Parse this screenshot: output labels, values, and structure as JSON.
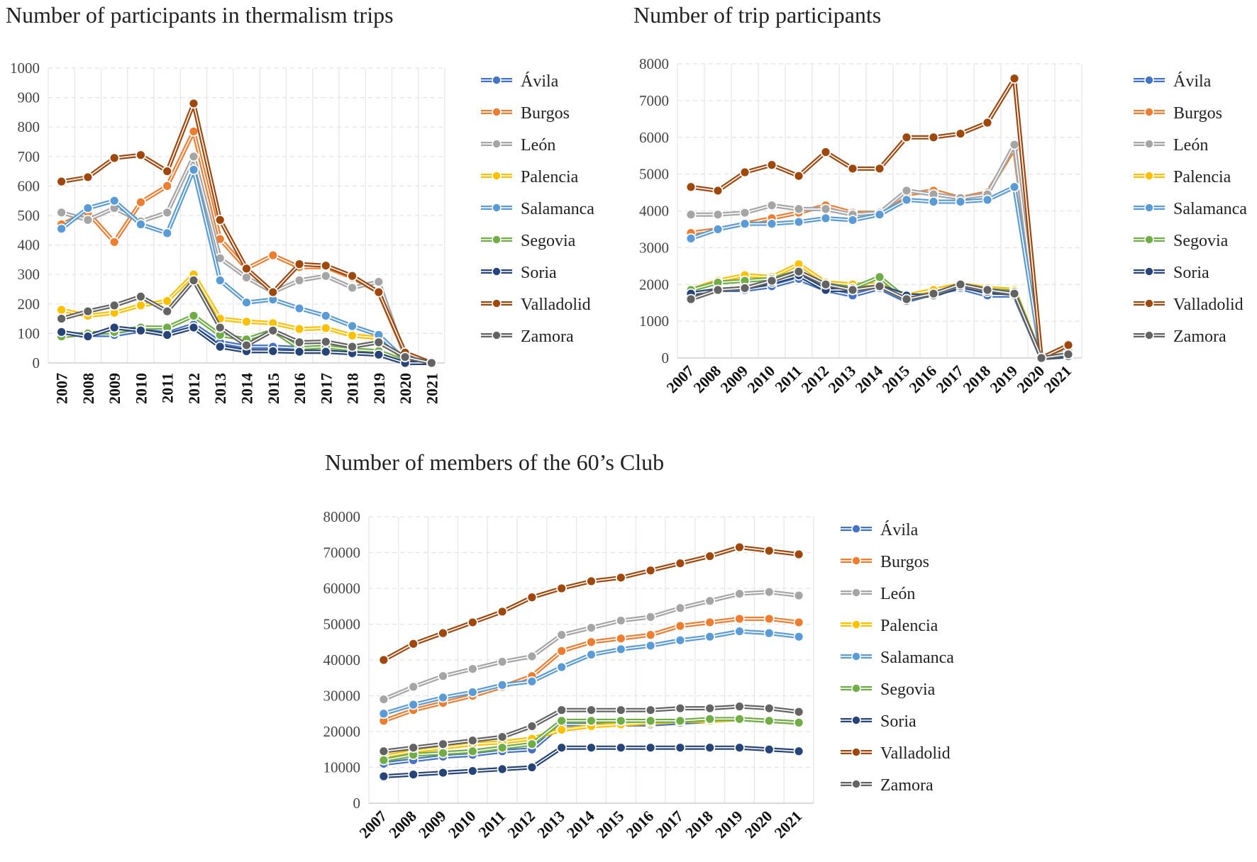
{
  "years": [
    "2007",
    "2008",
    "2009",
    "2010",
    "2011",
    "2012",
    "2013",
    "2014",
    "2015",
    "2016",
    "2017",
    "2018",
    "2019",
    "2020",
    "2021"
  ],
  "colors": {
    "Ávila": "#4472C4",
    "Burgos": "#ED7D31",
    "León": "#A5A5A5",
    "Palencia": "#FFC000",
    "Salamanca": "#5B9BD5",
    "Segovia": "#70AD47",
    "Soria": "#264478",
    "Valladolid": "#9E480E",
    "Zamora": "#636363"
  },
  "chart_data": [
    {
      "type": "line",
      "title": "Number of participants in thermalism trips",
      "xlabel": "",
      "ylabel": "",
      "ylim": [
        0,
        1000
      ],
      "yticks": [
        "0",
        "100",
        "200",
        "300",
        "400",
        "500",
        "600",
        "700",
        "800",
        "900",
        "1000"
      ],
      "grid": true,
      "legend": "right",
      "series": [
        {
          "name": "Ávila",
          "values": [
            100,
            95,
            95,
            110,
            100,
            130,
            70,
            55,
            55,
            50,
            45,
            40,
            30,
            0,
            0
          ]
        },
        {
          "name": "Burgos",
          "values": [
            470,
            510,
            410,
            545,
            600,
            785,
            420,
            320,
            365,
            325,
            325,
            290,
            240,
            30,
            0
          ]
        },
        {
          "name": "León",
          "values": [
            510,
            485,
            525,
            480,
            510,
            700,
            355,
            290,
            240,
            280,
            295,
            255,
            275,
            20,
            0
          ]
        },
        {
          "name": "Palencia",
          "values": [
            180,
            160,
            170,
            195,
            210,
            300,
            150,
            140,
            135,
            115,
            118,
            93,
            85,
            10,
            0
          ]
        },
        {
          "name": "Salamanca",
          "values": [
            455,
            525,
            550,
            470,
            440,
            655,
            280,
            205,
            215,
            185,
            160,
            125,
            95,
            10,
            0
          ]
        },
        {
          "name": "Segovia",
          "values": [
            90,
            100,
            105,
            120,
            120,
            160,
            95,
            80,
            110,
            50,
            55,
            45,
            40,
            5,
            0
          ]
        },
        {
          "name": "Soria",
          "values": [
            105,
            90,
            120,
            110,
            95,
            120,
            55,
            40,
            40,
            38,
            38,
            33,
            28,
            0,
            0
          ]
        },
        {
          "name": "Valladolid",
          "values": [
            615,
            630,
            695,
            705,
            650,
            880,
            485,
            320,
            240,
            335,
            330,
            295,
            240,
            35,
            0
          ]
        },
        {
          "name": "Zamora",
          "values": [
            150,
            175,
            195,
            225,
            175,
            280,
            120,
            60,
            110,
            70,
            72,
            55,
            70,
            20,
            0
          ]
        }
      ]
    },
    {
      "type": "line",
      "title": "Number of trip participants",
      "xlabel": "",
      "ylabel": "",
      "ylim": [
        0,
        8000
      ],
      "yticks": [
        "0",
        "1000",
        "2000",
        "3000",
        "4000",
        "5000",
        "6000",
        "7000",
        "8000"
      ],
      "grid": true,
      "legend": "right",
      "series": [
        {
          "name": "Ávila",
          "values": [
            1700,
            1850,
            1850,
            1950,
            2150,
            1850,
            1700,
            1900,
            1550,
            1750,
            1900,
            1700,
            1700,
            0,
            50
          ]
        },
        {
          "name": "Burgos",
          "values": [
            3400,
            3500,
            3650,
            3800,
            3950,
            4150,
            3950,
            3950,
            4450,
            4550,
            4350,
            4500,
            5700,
            0,
            300
          ]
        },
        {
          "name": "León",
          "values": [
            3900,
            3900,
            3950,
            4150,
            4050,
            4050,
            3900,
            3950,
            4550,
            4450,
            4350,
            4450,
            5800,
            0,
            200
          ]
        },
        {
          "name": "Palencia",
          "values": [
            1850,
            2100,
            2250,
            2200,
            2550,
            2050,
            2000,
            2000,
            1700,
            1850,
            2000,
            1900,
            1850,
            0,
            100
          ]
        },
        {
          "name": "Salamanca",
          "values": [
            3250,
            3500,
            3650,
            3650,
            3700,
            3800,
            3750,
            3900,
            4300,
            4250,
            4250,
            4300,
            4650,
            0,
            100
          ]
        },
        {
          "name": "Segovia",
          "values": [
            1850,
            2050,
            2100,
            2150,
            2350,
            2000,
            1900,
            2200,
            1600,
            1750,
            2000,
            1850,
            1800,
            0,
            50
          ]
        },
        {
          "name": "Soria",
          "values": [
            1750,
            1850,
            1900,
            2050,
            2250,
            1850,
            1850,
            1950,
            1700,
            1700,
            1950,
            1800,
            1750,
            0,
            50
          ]
        },
        {
          "name": "Valladolid",
          "values": [
            4650,
            4550,
            5050,
            5250,
            4950,
            5600,
            5150,
            5150,
            6000,
            6000,
            6100,
            6400,
            7600,
            0,
            350
          ]
        },
        {
          "name": "Zamora",
          "values": [
            1600,
            1850,
            1900,
            2100,
            2350,
            2000,
            1850,
            1950,
            1600,
            1750,
            2000,
            1850,
            1750,
            0,
            100
          ]
        }
      ]
    },
    {
      "type": "line",
      "title": "Number of members of the 60’s Club",
      "xlabel": "",
      "ylabel": "",
      "ylim": [
        0,
        80000
      ],
      "yticks": [
        "0",
        "10000",
        "20000",
        "30000",
        "40000",
        "50000",
        "60000",
        "70000",
        "80000"
      ],
      "grid": true,
      "legend": "right",
      "series": [
        {
          "name": "Ávila",
          "values": [
            11000,
            12000,
            13000,
            13500,
            14500,
            15000,
            22000,
            22000,
            22000,
            22000,
            22500,
            23000,
            23500,
            23000,
            22500
          ]
        },
        {
          "name": "Burgos",
          "values": [
            23000,
            26000,
            28000,
            30000,
            32500,
            35500,
            42500,
            45000,
            46000,
            47000,
            49500,
            50500,
            51500,
            51500,
            50500
          ]
        },
        {
          "name": "León",
          "values": [
            29000,
            32500,
            35500,
            37500,
            39500,
            41000,
            47000,
            49000,
            51000,
            52000,
            54500,
            56500,
            58500,
            59000,
            58000
          ]
        },
        {
          "name": "Palencia",
          "values": [
            13000,
            14500,
            15500,
            16500,
            17000,
            18000,
            20500,
            21500,
            22000,
            22500,
            23000,
            23000,
            23500,
            23000,
            22500
          ]
        },
        {
          "name": "Salamanca",
          "values": [
            25000,
            27500,
            29500,
            31000,
            33000,
            34000,
            38000,
            41500,
            43000,
            44000,
            45500,
            46500,
            48000,
            47500,
            46500
          ]
        },
        {
          "name": "Segovia",
          "values": [
            12000,
            13500,
            14000,
            14500,
            15500,
            16500,
            23000,
            23000,
            23000,
            23000,
            23000,
            23500,
            23500,
            23000,
            22500
          ]
        },
        {
          "name": "Soria",
          "values": [
            7500,
            8000,
            8500,
            9000,
            9500,
            10000,
            15500,
            15500,
            15500,
            15500,
            15500,
            15500,
            15500,
            15000,
            14500
          ]
        },
        {
          "name": "Valladolid",
          "values": [
            40000,
            44500,
            47500,
            50500,
            53500,
            57500,
            60000,
            62000,
            63000,
            65000,
            67000,
            69000,
            71500,
            70500,
            69500
          ]
        },
        {
          "name": "Zamora",
          "values": [
            14500,
            15500,
            16500,
            17500,
            18500,
            21500,
            26000,
            26000,
            26000,
            26000,
            26500,
            26500,
            27000,
            26500,
            25500
          ]
        }
      ]
    }
  ]
}
